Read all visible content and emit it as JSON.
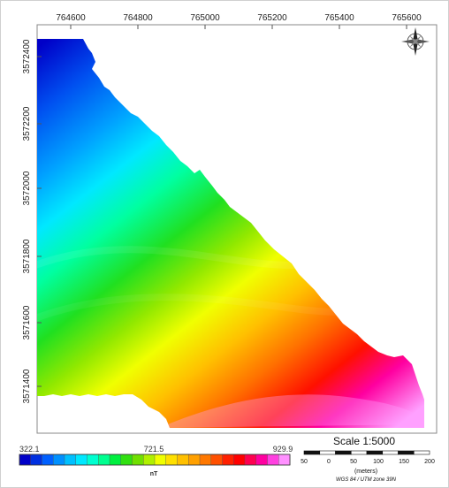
{
  "map": {
    "x_ticks": [
      "764600",
      "764800",
      "765000",
      "765200",
      "765400",
      "765600"
    ],
    "y_ticks": [
      "3572400",
      "3572200",
      "3572000",
      "3571800",
      "3571600",
      "3571400"
    ]
  },
  "north_arrow": {
    "icon": "compass-rose-icon"
  },
  "legend": {
    "min_label": "322.1",
    "mid_label": "721.5",
    "max_label": "929.9",
    "unit": "nT",
    "min_value": 322.1,
    "mid_value": 721.5,
    "max_value": 929.9,
    "colors": [
      "#0000c8",
      "#0030e0",
      "#0060ff",
      "#0090ff",
      "#00c0ff",
      "#00e8ff",
      "#00ffd0",
      "#00ff90",
      "#00f040",
      "#30e010",
      "#70e000",
      "#b0f000",
      "#f0ff00",
      "#ffe000",
      "#ffc000",
      "#ffa000",
      "#ff7800",
      "#ff5000",
      "#ff2000",
      "#ff0000",
      "#ff0050",
      "#ff00a0",
      "#ff40e0",
      "#ff90ff"
    ]
  },
  "scale": {
    "title": "Scale 1:5000",
    "ticks": [
      "50",
      "0",
      "50",
      "100",
      "150",
      "200"
    ],
    "unit": "(meters)",
    "projection": "WGS 84 / UTM zone 39N"
  }
}
